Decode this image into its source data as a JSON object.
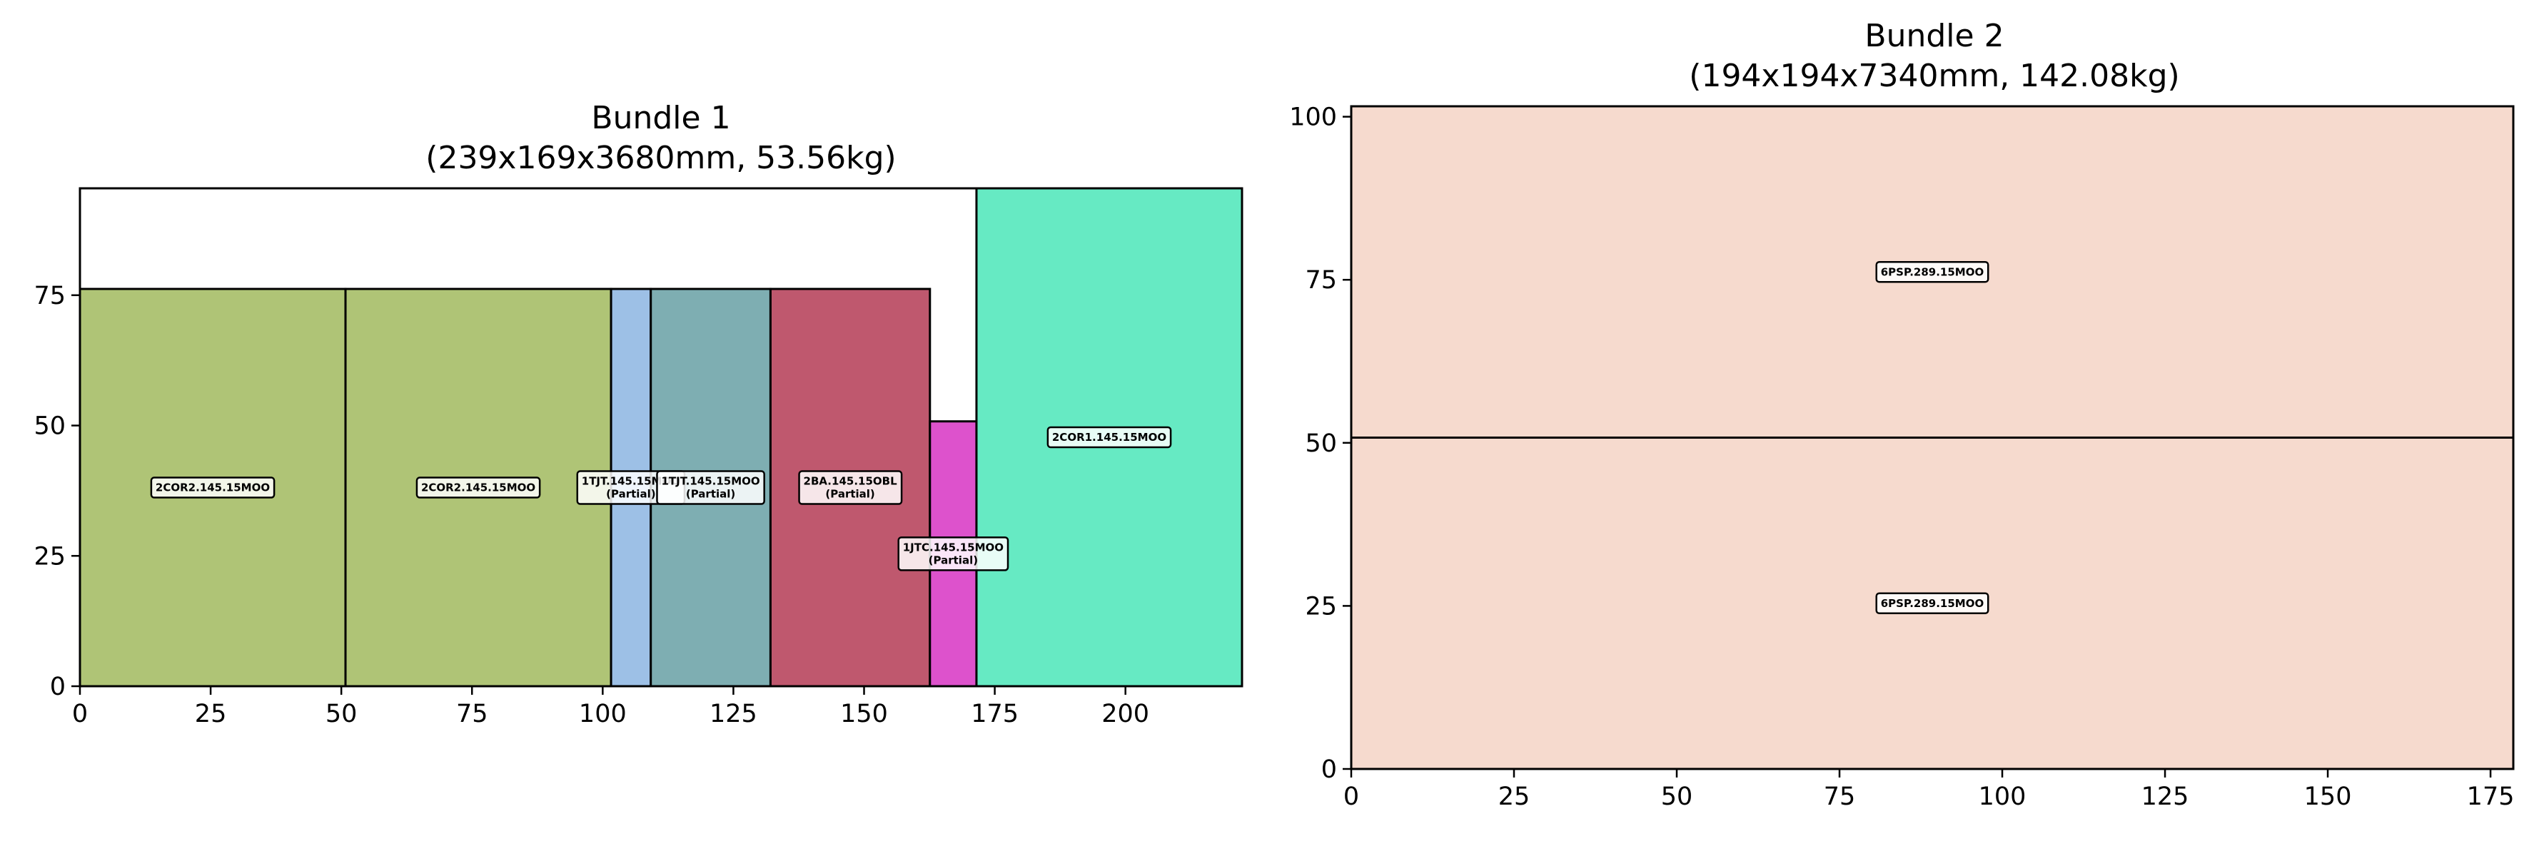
{
  "chart_data": [
    {
      "type": "rect-packing",
      "title": "Bundle 1",
      "subtitle": "(239x169x3680mm, 53.56kg)",
      "xlim": [
        0,
        222.3
      ],
      "ylim": [
        0,
        95.5
      ],
      "xticks": [
        0,
        25,
        50,
        75,
        100,
        125,
        150,
        175,
        200
      ],
      "yticks": [
        0,
        25,
        50,
        75
      ],
      "rects": [
        {
          "x": 0,
          "y": 0,
          "w": 50.8,
          "h": 76.2,
          "color": "#afc476",
          "label": [
            "2COR2.145.15MOO"
          ]
        },
        {
          "x": 50.8,
          "y": 0,
          "w": 50.8,
          "h": 76.2,
          "color": "#afc476",
          "label": [
            "2COR2.145.15MOO"
          ]
        },
        {
          "x": 101.6,
          "y": 0,
          "w": 7.6,
          "h": 76.2,
          "color": "#9dc0e6",
          "label": [
            "1TJT.145.15MOO",
            "(Partial)"
          ]
        },
        {
          "x": 109.2,
          "y": 0,
          "w": 22.9,
          "h": 76.2,
          "color": "#7eaeb2",
          "label": [
            "1TJT.145.15MOO",
            "(Partial)"
          ]
        },
        {
          "x": 132.1,
          "y": 0,
          "w": 30.5,
          "h": 76.2,
          "color": "#bf586e",
          "label": [
            "2BA.145.15OBL",
            "(Partial)"
          ]
        },
        {
          "x": 162.6,
          "y": 0,
          "w": 8.9,
          "h": 50.8,
          "color": "#dd52cc",
          "label": [
            "1JTC.145.15MOO",
            "(Partial)"
          ]
        },
        {
          "x": 171.5,
          "y": 0,
          "w": 50.8,
          "h": 95.5,
          "color": "#66eac3",
          "label": [
            "2COR1.145.15MOO"
          ]
        }
      ]
    },
    {
      "type": "rect-packing",
      "title": "Bundle 2",
      "subtitle": "(194x194x7340mm, 142.08kg)",
      "xlim": [
        0,
        178.5
      ],
      "ylim": [
        0,
        101.6
      ],
      "xticks": [
        0,
        25,
        50,
        75,
        100,
        125,
        150,
        175
      ],
      "yticks": [
        0,
        25,
        50,
        75,
        100
      ],
      "rects": [
        {
          "x": 0,
          "y": 0,
          "w": 178.5,
          "h": 50.8,
          "color": "#f6dace",
          "label": [
            "6PSP.289.15MOO"
          ]
        },
        {
          "x": 0,
          "y": 50.8,
          "w": 178.5,
          "h": 50.8,
          "color": "#f6dace",
          "label": [
            "6PSP.289.15MOO"
          ]
        }
      ]
    }
  ]
}
